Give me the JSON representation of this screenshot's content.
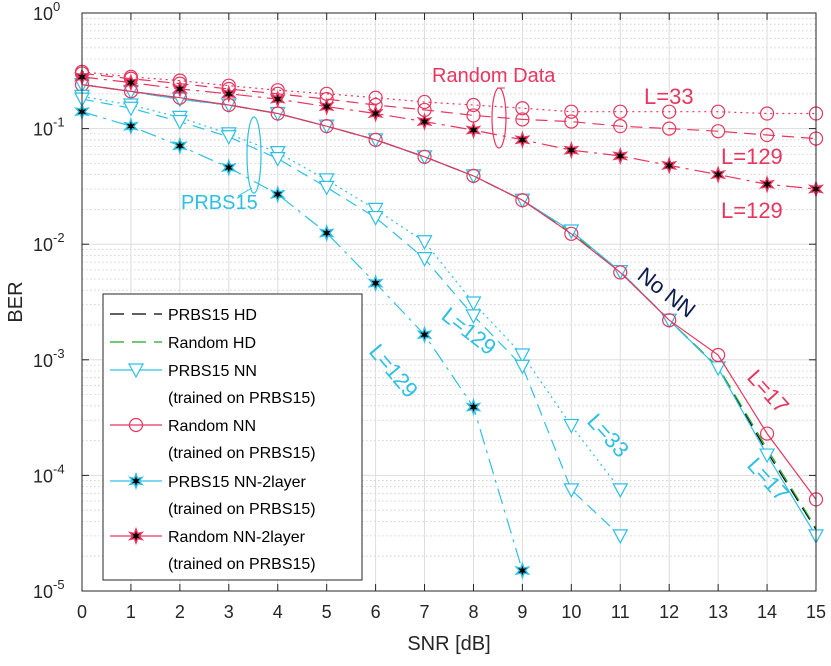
{
  "chart_data": {
    "type": "line",
    "xlabel": "SNR [dB]",
    "ylabel": "BER",
    "xlim": [
      0,
      15
    ],
    "ylim": [
      1e-05,
      1
    ],
    "yscale": "log",
    "grid": true,
    "legend_position": "bottom-left",
    "x_ticks": [
      "0",
      "1",
      "2",
      "3",
      "4",
      "5",
      "6",
      "7",
      "8",
      "9",
      "10",
      "11",
      "12",
      "13",
      "14",
      "15"
    ],
    "y_ticks": [
      {
        "base": "10",
        "exp": "0"
      },
      {
        "base": "10",
        "exp": "-1"
      },
      {
        "base": "10",
        "exp": "-2"
      },
      {
        "base": "10",
        "exp": "-3"
      },
      {
        "base": "10",
        "exp": "-4"
      },
      {
        "base": "10",
        "exp": "-5"
      }
    ],
    "legend": [
      {
        "label": "PRBS15 HD",
        "color": "#000000",
        "dash": "long",
        "marker": "none"
      },
      {
        "label": "Random HD",
        "color": "#22aa22",
        "dash": "long",
        "marker": "none"
      },
      {
        "label": "PRBS15 NN",
        "label2": "(trained on PRBS15)",
        "color": "#2ec0e4",
        "dash": "solid",
        "marker": "triangle"
      },
      {
        "label": "Random NN",
        "label2": "(trained on PRBS15)",
        "color": "#e8365e",
        "dash": "solid",
        "marker": "circle"
      },
      {
        "label": "PRBS15 NN-2layer",
        "label2": "(trained on PRBS15)",
        "color": "#2ec0e4",
        "dash": "solid",
        "marker": "star"
      },
      {
        "label": "Random NN-2layer",
        "label2": "(trained on PRBS15)",
        "color": "#e8365e",
        "dash": "solid",
        "marker": "star"
      }
    ],
    "series": [
      {
        "name": "PRBS15 HD",
        "color": "#000000",
        "dash": "long",
        "marker": "none",
        "x": [
          0,
          1,
          2,
          3,
          4,
          5,
          6,
          7,
          8,
          9,
          10,
          11,
          12,
          13,
          14,
          15
        ],
        "y": [
          0.24,
          0.21,
          0.18,
          0.16,
          0.135,
          0.105,
          0.08,
          0.057,
          0.039,
          0.024,
          0.0125,
          0.0058,
          0.0022,
          0.00085,
          0.00016,
          3.4e-05
        ]
      },
      {
        "name": "Random HD",
        "color": "#22aa22",
        "dash": "long",
        "marker": "none",
        "x": [
          0,
          1,
          2,
          3,
          4,
          5,
          6,
          7,
          8,
          9,
          10,
          11,
          12,
          13,
          14,
          15
        ],
        "y": [
          0.24,
          0.21,
          0.18,
          0.16,
          0.135,
          0.105,
          0.08,
          0.057,
          0.039,
          0.024,
          0.0125,
          0.0058,
          0.0022,
          0.00087,
          0.00017,
          3.5e-05
        ]
      },
      {
        "name": "PRBS15 NN",
        "color": "#2ec0e4",
        "dash": "solid",
        "marker": "triangle",
        "x": [
          0,
          1,
          2,
          3,
          4,
          5,
          6,
          7,
          8,
          9,
          10,
          11,
          12,
          13,
          14,
          15
        ],
        "y": [
          0.24,
          0.21,
          0.18,
          0.16,
          0.135,
          0.105,
          0.08,
          0.057,
          0.039,
          0.024,
          0.013,
          0.0058,
          0.0022,
          0.00085,
          0.00015,
          3e-05
        ]
      },
      {
        "name": "Random NN",
        "color": "#e8365e",
        "dash": "solid",
        "marker": "circle",
        "x": [
          0,
          1,
          2,
          3,
          4,
          5,
          6,
          7,
          8,
          9,
          10,
          11,
          12,
          13,
          14,
          15
        ],
        "y": [
          0.24,
          0.21,
          0.185,
          0.16,
          0.135,
          0.105,
          0.08,
          0.057,
          0.039,
          0.024,
          0.0123,
          0.0057,
          0.0022,
          0.0011,
          0.00023,
          6.2e-05
        ]
      },
      {
        "name": "PRBS15 NN L=33",
        "color": "#2ec0e4",
        "dash": "dot",
        "marker": "triangle",
        "x": [
          0,
          1,
          2,
          3,
          4,
          5,
          6,
          7,
          8,
          9,
          10,
          11
        ],
        "y": [
          0.19,
          0.16,
          0.125,
          0.09,
          0.062,
          0.036,
          0.02,
          0.0105,
          0.0031,
          0.0011,
          0.00027,
          7.5e-05
        ]
      },
      {
        "name": "PRBS15 NN L=129",
        "color": "#2ec0e4",
        "dash": "dash",
        "marker": "triangle",
        "x": [
          0,
          1,
          2,
          3,
          4,
          5,
          6,
          7,
          8,
          9,
          10,
          11
        ],
        "y": [
          0.18,
          0.15,
          0.115,
          0.085,
          0.055,
          0.031,
          0.017,
          0.0075,
          0.0024,
          0.00088,
          7.5e-05,
          3e-05
        ]
      },
      {
        "name": "Random NN L=33",
        "color": "#e8365e",
        "dash": "dot",
        "marker": "circle",
        "x": [
          0,
          1,
          2,
          3,
          4,
          5,
          6,
          7,
          8,
          9,
          10,
          11,
          12,
          13,
          14,
          15
        ],
        "y": [
          0.31,
          0.28,
          0.26,
          0.235,
          0.215,
          0.2,
          0.185,
          0.17,
          0.16,
          0.15,
          0.14,
          0.14,
          0.14,
          0.14,
          0.135,
          0.135
        ]
      },
      {
        "name": "Random NN L=129",
        "color": "#e8365e",
        "dash": "dash",
        "marker": "circle",
        "x": [
          0,
          1,
          2,
          3,
          4,
          5,
          6,
          7,
          8,
          9,
          10,
          11,
          12,
          13,
          14,
          15
        ],
        "y": [
          0.3,
          0.27,
          0.245,
          0.22,
          0.2,
          0.18,
          0.16,
          0.145,
          0.13,
          0.12,
          0.115,
          0.105,
          0.1,
          0.095,
          0.088,
          0.082
        ]
      },
      {
        "name": "PRBS15 NN-2layer L=129",
        "color": "#2ec0e4",
        "dash": "dashdot",
        "marker": "star",
        "x": [
          0,
          1,
          2,
          3,
          4,
          5,
          6,
          7,
          8,
          9
        ],
        "y": [
          0.14,
          0.105,
          0.071,
          0.046,
          0.027,
          0.0125,
          0.0046,
          0.00165,
          0.00039,
          1.5e-05
        ]
      },
      {
        "name": "Random NN-2layer L=129",
        "color": "#e8365e",
        "dash": "dashdot",
        "marker": "star",
        "x": [
          0,
          1,
          2,
          3,
          4,
          5,
          6,
          7,
          8,
          9,
          10,
          11,
          12,
          13,
          14,
          15
        ],
        "y": [
          0.28,
          0.25,
          0.22,
          0.2,
          0.18,
          0.155,
          0.135,
          0.115,
          0.097,
          0.08,
          0.065,
          0.058,
          0.048,
          0.04,
          0.033,
          0.03
        ]
      }
    ],
    "annotations": [
      {
        "text": "Random Data",
        "color": "#e8365e"
      },
      {
        "text": "L=33",
        "color": "#e8365e"
      },
      {
        "text": "L=129",
        "color": "#e8365e"
      },
      {
        "text": "L=129",
        "color": "#e8365e"
      },
      {
        "text": "PRBS15",
        "color": "#2ec0e4"
      },
      {
        "text": "No NN",
        "color": "#0d1b4f"
      },
      {
        "text": "L=129",
        "color": "#2ec0e4"
      },
      {
        "text": "L=129",
        "color": "#2ec0e4"
      },
      {
        "text": "L=33",
        "color": "#2ec0e4"
      },
      {
        "text": "L=17",
        "color": "#e8365e"
      },
      {
        "text": "L=17",
        "color": "#2ec0e4"
      }
    ]
  }
}
